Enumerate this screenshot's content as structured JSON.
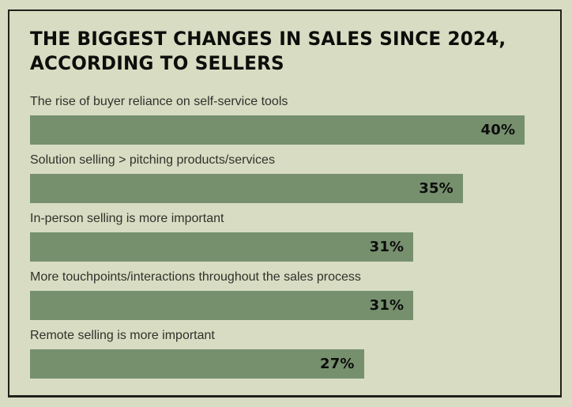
{
  "page": {
    "background_color": "#d8dcc2",
    "border_color": "#21211c"
  },
  "chart_data": {
    "type": "bar",
    "orientation": "horizontal",
    "title_lines": [
      "THE BIGGEST CHANGES IN SALES SINCE 2024,",
      "ACCORDING TO SELLERS"
    ],
    "title": "THE BIGGEST CHANGES IN SALES SINCE 2024, ACCORDING TO SELLERS",
    "categories": [
      "The rise of buyer reliance on self-service tools",
      "Solution selling > pitching products/services",
      "In-person selling is more important",
      "More touchpoints/interactions throughout the sales process",
      "Remote selling is more important"
    ],
    "values": [
      40,
      35,
      31,
      31,
      27
    ],
    "value_suffix": "%",
    "value_labels": [
      "40%",
      "35%",
      "31%",
      "31%",
      "27%"
    ],
    "xlim": [
      0,
      41.2
    ],
    "bar_color": "#76906e",
    "value_label_position": "inside-right",
    "grid": false,
    "legend": false
  }
}
